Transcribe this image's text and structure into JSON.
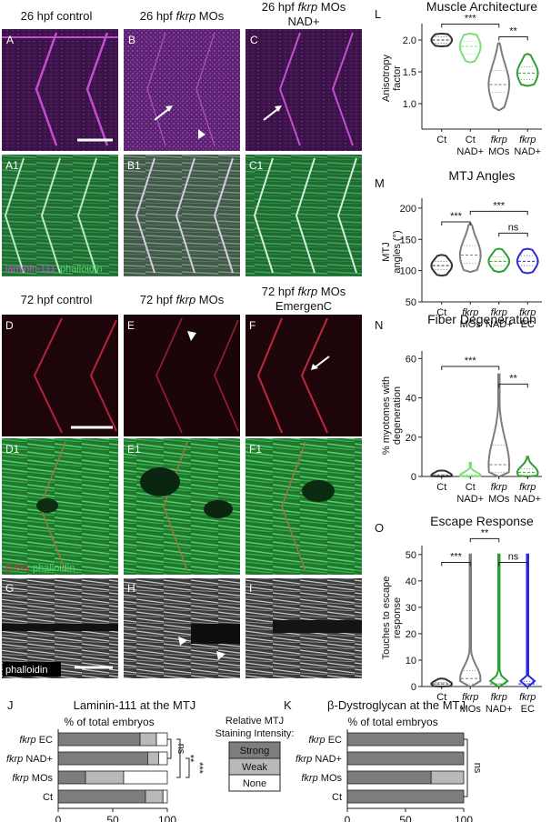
{
  "headers": {
    "h26_control": "26 hpf control",
    "h26_mo_a": "26 hpf ",
    "h26_mo_b": "fkrp",
    "h26_mo_c": " MOs",
    "h26_nad_a": "26 hpf ",
    "h26_nad_b": "fkrp",
    "h26_nad_c": " MOs",
    "h26_nad_d": "NAD+",
    "h72_control": "72 hpf control",
    "h72_mo_a": "72 hpf ",
    "h72_mo_b": "fkrp",
    "h72_mo_c": " MOs",
    "h72_ec_a": "72 hpf ",
    "h72_ec_b": "fkrp",
    "h72_ec_c": " MOs",
    "h72_ec_d": "EmergenC"
  },
  "panel_letters": {
    "A": "A",
    "B": "B",
    "C": "C",
    "A1": "A1",
    "B1": "B1",
    "C1": "C1",
    "D": "D",
    "E": "E",
    "F": "F",
    "D1": "D1",
    "E1": "E1",
    "F1": "F1",
    "G": "G",
    "H": "H",
    "I": "I",
    "J": "J",
    "K": "K",
    "L": "L",
    "M": "M",
    "N": "N",
    "O": "O"
  },
  "stain_labels": {
    "laminin": "laminin-111",
    "phalloidin_a": "phalloidin",
    "bdg": "β-DG",
    "phalloidin_b": "phalloidin",
    "phalloidin_c": "phalloidin"
  },
  "colors": {
    "magenta": "#c24ed0",
    "green": "#4fd26a",
    "red": "#b3243c",
    "ct_violin": "#333333",
    "ct_nad_violin": "#7be07b",
    "mo_violin": "#7d7d7d",
    "nad_violin": "#2f9e33",
    "ec_violin": "#2a2ad8",
    "strong": "#7d7d7d",
    "weak": "#b9b9b9",
    "none": "#ffffff"
  },
  "legend": {
    "title_line1": "Relative MTJ",
    "title_line2": "Staining Intensity:",
    "strong": "Strong",
    "weak": "Weak",
    "none": "None"
  },
  "chart_data": [
    {
      "id": "L",
      "type": "violin",
      "title": "Muscle Architecture",
      "ylabel_line1": "Anisotropy",
      "ylabel_line2": "factor",
      "ylim": [
        0.6,
        2.2
      ],
      "yticks": [
        "1.0",
        "1.5",
        "2.0"
      ],
      "groups": [
        {
          "line1": "Ct",
          "line1_italic": false,
          "line2": "",
          "color": "#333333",
          "median": 2.0,
          "q1": 1.95,
          "q3": 2.05,
          "min": 1.9,
          "max": 2.1
        },
        {
          "line1": "Ct",
          "line1_italic": false,
          "line2": "NAD+",
          "color": "#7be07b",
          "median": 1.9,
          "q1": 1.78,
          "q3": 1.98,
          "min": 1.65,
          "max": 2.1
        },
        {
          "line1": "fkrp",
          "line1_italic": true,
          "line2": "MOs",
          "color": "#7d7d7d",
          "median": 1.3,
          "q1": 1.18,
          "q3": 1.52,
          "min": 0.9,
          "max": 1.95
        },
        {
          "line1": "fkrp",
          "line1_italic": true,
          "line2": "NAD+",
          "color": "#2f9e33",
          "median": 1.48,
          "q1": 1.38,
          "q3": 1.58,
          "min": 1.28,
          "max": 1.78
        }
      ],
      "significance": [
        {
          "label": "***",
          "from": 0,
          "to": 2,
          "level": 2.25
        },
        {
          "label": "**",
          "from": 2,
          "to": 3,
          "level": 2.05
        }
      ]
    },
    {
      "id": "M",
      "type": "violin",
      "title": "MTJ Angles",
      "ylabel_line1": "MTJ",
      "ylabel_line2": "angles (°)",
      "ylim": [
        50,
        210
      ],
      "yticks": [
        "50",
        "100",
        "150",
        "200"
      ],
      "groups": [
        {
          "line1": "Ct",
          "line1_italic": false,
          "line2": "",
          "color": "#333333",
          "median": 108,
          "q1": 102,
          "q3": 115,
          "min": 92,
          "max": 125
        },
        {
          "line1": "fkrp",
          "line1_italic": true,
          "line2": "MOs",
          "color": "#7d7d7d",
          "median": 125,
          "q1": 112,
          "q3": 140,
          "min": 98,
          "max": 175
        },
        {
          "line1": "fkrp",
          "line1_italic": true,
          "line2": "NAD+",
          "color": "#2f9e33",
          "median": 115,
          "q1": 108,
          "q3": 122,
          "min": 98,
          "max": 135
        },
        {
          "line1": "fkrp",
          "line1_italic": true,
          "line2": "EC",
          "color": "#2a2ad8",
          "median": 115,
          "q1": 108,
          "q3": 124,
          "min": 96,
          "max": 135
        }
      ],
      "significance": [
        {
          "label": "***",
          "from": 0,
          "to": 1,
          "level": 178
        },
        {
          "label": "***",
          "from": 1,
          "to": 3,
          "level": 195
        },
        {
          "label": "ns",
          "from": 2,
          "to": 3,
          "level": 160
        }
      ]
    },
    {
      "id": "N",
      "type": "violin",
      "title": "Fiber Degeneration",
      "ylabel_line1": "% myotomes with",
      "ylabel_line2": "degeneration",
      "ylim": [
        0,
        62
      ],
      "yticks": [
        "0",
        "20",
        "40",
        "60"
      ],
      "groups": [
        {
          "line1": "Ct",
          "line1_italic": false,
          "line2": "",
          "color": "#333333",
          "median": 0.5,
          "q1": 0,
          "q3": 1,
          "min": 0,
          "max": 3
        },
        {
          "line1": "Ct",
          "line1_italic": false,
          "line2": "NAD+",
          "color": "#7be07b",
          "median": 0.5,
          "q1": 0,
          "q3": 1,
          "min": 0,
          "max": 7
        },
        {
          "line1": "fkrp",
          "line1_italic": true,
          "line2": "MOs",
          "color": "#7d7d7d",
          "median": 6,
          "q1": 2,
          "q3": 16,
          "min": 0,
          "max": 52
        },
        {
          "line1": "fkrp",
          "line1_italic": true,
          "line2": "NAD+",
          "color": "#2f9e33",
          "median": 2,
          "q1": 0.5,
          "q3": 4,
          "min": 0,
          "max": 10
        }
      ],
      "significance": [
        {
          "label": "***",
          "from": 0,
          "to": 2,
          "level": 56
        },
        {
          "label": "**",
          "from": 2,
          "to": 3,
          "level": 47
        }
      ]
    },
    {
      "id": "O",
      "type": "violin",
      "title": "Escape Response",
      "ylabel_line1": "Touches to escape",
      "ylabel_line2": "response",
      "ylim": [
        0,
        52
      ],
      "yticks": [
        "0",
        "10",
        "20",
        "30",
        "40",
        "50"
      ],
      "groups": [
        {
          "line1": "Ct",
          "line1_italic": false,
          "line2": "",
          "color": "#333333",
          "median": 1,
          "q1": 1,
          "q3": 1.5,
          "min": 0,
          "max": 3
        },
        {
          "line1": "fkrp",
          "line1_italic": true,
          "line2": "MOs",
          "color": "#7d7d7d",
          "median": 3,
          "q1": 1,
          "q3": 6,
          "min": 0,
          "max": 50
        },
        {
          "line1": "fkrp",
          "line1_italic": true,
          "line2": "NAD+",
          "color": "#2f9e33",
          "median": 1,
          "q1": 1,
          "q3": 3,
          "min": 0,
          "max": 50
        },
        {
          "line1": "fkrp",
          "line1_italic": true,
          "line2": "EC",
          "color": "#2a2ad8",
          "median": 1,
          "q1": 1,
          "q3": 2,
          "min": 0,
          "max": 50
        }
      ],
      "significance": [
        {
          "label": "***",
          "from": 0,
          "to": 1,
          "level": 47
        },
        {
          "label": "**",
          "from": 1,
          "to": 2,
          "level": 56
        },
        {
          "label": "ns",
          "from": 2,
          "to": 3,
          "level": 47
        }
      ]
    },
    {
      "id": "J",
      "type": "bar",
      "stacked": true,
      "orientation": "horizontal",
      "title": "Laminin-111 at the MTJ",
      "subtitle": "% of total embryos",
      "xlim": [
        0,
        100
      ],
      "xticks": [
        "0",
        "50",
        "100"
      ],
      "categories": [
        {
          "pre": "",
          "italic": "fkrp",
          "post": " EC"
        },
        {
          "pre": "",
          "italic": "fkrp",
          "post": " NAD+"
        },
        {
          "pre": "",
          "italic": "fkrp",
          "post": " MOs"
        },
        {
          "pre": "Ct",
          "italic": "",
          "post": ""
        }
      ],
      "series": [
        {
          "name": "Strong",
          "values": [
            75,
            82,
            25,
            80
          ]
        },
        {
          "name": "Weak",
          "values": [
            15,
            10,
            35,
            16
          ]
        },
        {
          "name": "None",
          "values": [
            10,
            8,
            40,
            4
          ]
        }
      ],
      "significance": [
        {
          "label": "ns",
          "from": 0,
          "to": 1
        },
        {
          "label": "**",
          "from": 0,
          "to": 2
        },
        {
          "label": "***",
          "from": 1,
          "to": 2
        }
      ]
    },
    {
      "id": "K",
      "type": "bar",
      "stacked": true,
      "orientation": "horizontal",
      "title": "β-Dystroglycan at the MTJ",
      "subtitle": "% of total embryos",
      "xlim": [
        0,
        100
      ],
      "xticks": [
        "0",
        "50",
        "100"
      ],
      "categories": [
        {
          "pre": "",
          "italic": "fkrp",
          "post": " EC"
        },
        {
          "pre": "",
          "italic": "fkrp",
          "post": " NAD+"
        },
        {
          "pre": "",
          "italic": "fkrp",
          "post": " MOs"
        },
        {
          "pre": "Ct",
          "italic": "",
          "post": ""
        }
      ],
      "series": [
        {
          "name": "Strong",
          "values": [
            100,
            100,
            72,
            100
          ]
        },
        {
          "name": "Weak",
          "values": [
            0,
            0,
            28,
            0
          ]
        },
        {
          "name": "None",
          "values": [
            0,
            0,
            0,
            0
          ]
        }
      ],
      "significance": [
        {
          "label": "ns",
          "from": 0,
          "to": 3
        }
      ]
    }
  ]
}
